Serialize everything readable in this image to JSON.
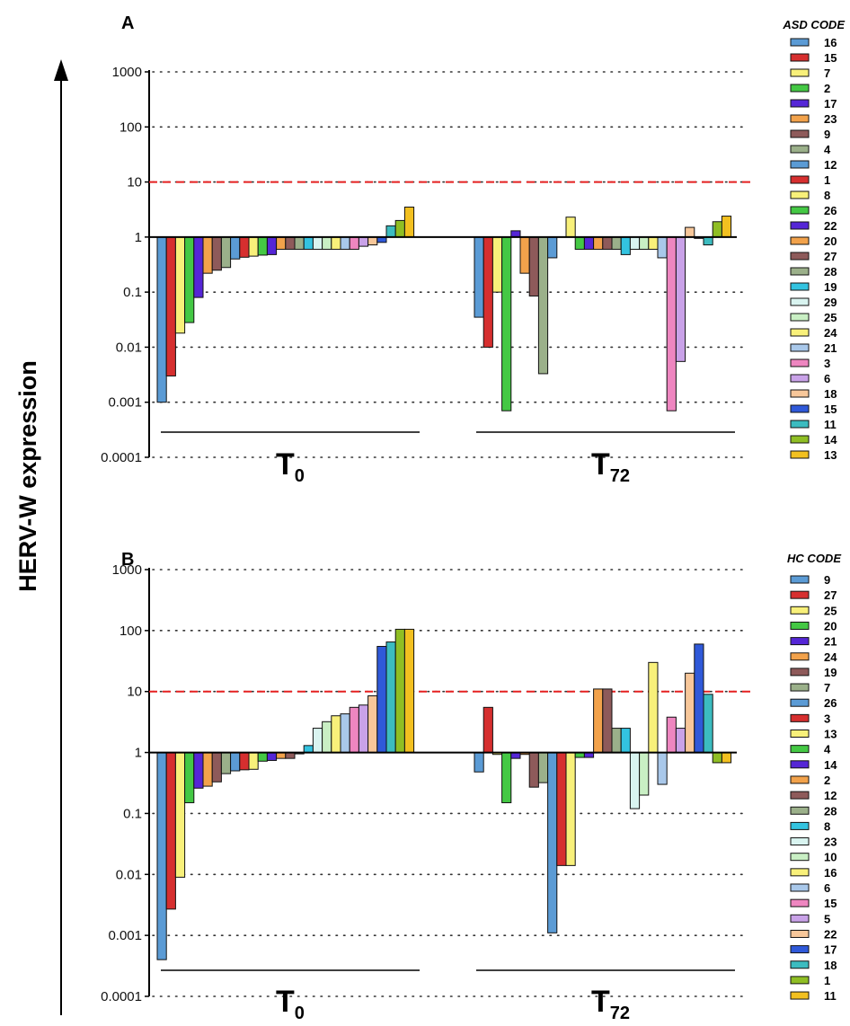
{
  "y_axis_label": "HERV-W expression",
  "tick_labels": [
    "0.0001",
    "0.001",
    "0.01",
    "0.1",
    "1",
    "10",
    "100",
    "1000"
  ],
  "chart_data": [
    {
      "type": "bar",
      "panel": "A",
      "legend_title": "ASD CODE",
      "y_scale": "log",
      "ylim": [
        0.0001,
        1000
      ],
      "reference_line": 10,
      "groups": [
        {
          "label": "T",
          "subscript": "0"
        },
        {
          "label": "T",
          "subscript": "72"
        }
      ],
      "series": [
        {
          "name": "16",
          "color": "#5b9bd5",
          "values": [
            0.001,
            0.035
          ]
        },
        {
          "name": "15",
          "color": "#d62f2f",
          "values": [
            0.003,
            0.01
          ]
        },
        {
          "name": "7",
          "color": "#f8f07a",
          "values": [
            0.018,
            0.1
          ]
        },
        {
          "name": "2",
          "color": "#44c844",
          "values": [
            0.028,
            0.0007
          ]
        },
        {
          "name": "17",
          "color": "#5526d6",
          "values": [
            0.08,
            1.3
          ]
        },
        {
          "name": "23",
          "color": "#f2a24b",
          "values": [
            0.22,
            0.22
          ]
        },
        {
          "name": "9",
          "color": "#8e5a5a",
          "values": [
            0.25,
            0.085
          ]
        },
        {
          "name": "4",
          "color": "#9bb08a",
          "values": [
            0.28,
            0.0033
          ]
        },
        {
          "name": "12",
          "color": "#5b9bd5",
          "values": [
            0.4,
            0.42
          ]
        },
        {
          "name": "1",
          "color": "#d62f2f",
          "values": [
            0.43,
            null
          ]
        },
        {
          "name": "8",
          "color": "#f8f07a",
          "values": [
            0.45,
            2.3
          ]
        },
        {
          "name": "26",
          "color": "#44c844",
          "values": [
            0.47,
            0.6
          ]
        },
        {
          "name": "22",
          "color": "#5526d6",
          "values": [
            0.48,
            0.6
          ]
        },
        {
          "name": "20",
          "color": "#f2a24b",
          "values": [
            0.6,
            0.6
          ]
        },
        {
          "name": "27",
          "color": "#8e5a5a",
          "values": [
            0.6,
            0.6
          ]
        },
        {
          "name": "28",
          "color": "#9bb08a",
          "values": [
            0.6,
            0.6
          ]
        },
        {
          "name": "19",
          "color": "#33c3e0",
          "values": [
            0.6,
            0.48
          ]
        },
        {
          "name": "29",
          "color": "#d9f4f0",
          "values": [
            0.6,
            0.6
          ]
        },
        {
          "name": "25",
          "color": "#c9efc4",
          "values": [
            0.6,
            0.6
          ]
        },
        {
          "name": "24",
          "color": "#f8f07a",
          "values": [
            0.6,
            0.6
          ]
        },
        {
          "name": "21",
          "color": "#a9c8ea",
          "values": [
            0.6,
            0.42
          ]
        },
        {
          "name": "3",
          "color": "#ee86c0",
          "values": [
            0.6,
            0.0007
          ]
        },
        {
          "name": "6",
          "color": "#c9a2e8",
          "values": [
            0.68,
            0.0055
          ]
        },
        {
          "name": "18",
          "color": "#f7c79a",
          "values": [
            0.72,
            1.5
          ]
        },
        {
          "name": "15",
          "color": "#2f59d9",
          "values": [
            0.8,
            0.95
          ]
        },
        {
          "name": "11",
          "color": "#3cbcc0",
          "values": [
            1.6,
            0.72
          ]
        },
        {
          "name": "14",
          "color": "#8fbe24",
          "values": [
            2.0,
            1.9
          ]
        },
        {
          "name": "13",
          "color": "#f2c020",
          "values": [
            3.5,
            2.4
          ]
        }
      ]
    },
    {
      "type": "bar",
      "panel": "B",
      "legend_title": "HC CODE",
      "y_scale": "log",
      "ylim": [
        0.0001,
        1000
      ],
      "reference_line": 10,
      "groups": [
        {
          "label": "T",
          "subscript": "0"
        },
        {
          "label": "T",
          "subscript": "72"
        }
      ],
      "series": [
        {
          "name": "9",
          "color": "#5b9bd5",
          "values": [
            0.0004,
            0.48
          ]
        },
        {
          "name": "27",
          "color": "#d62f2f",
          "values": [
            0.0027,
            5.5
          ]
        },
        {
          "name": "25",
          "color": "#f8f07a",
          "values": [
            0.009,
            0.93
          ]
        },
        {
          "name": "20",
          "color": "#44c844",
          "values": [
            0.15,
            0.15
          ]
        },
        {
          "name": "21",
          "color": "#5526d6",
          "values": [
            0.26,
            0.8
          ]
        },
        {
          "name": "24",
          "color": "#f2a24b",
          "values": [
            0.28,
            0.93
          ]
        },
        {
          "name": "19",
          "color": "#8e5a5a",
          "values": [
            0.33,
            0.27
          ]
        },
        {
          "name": "7",
          "color": "#9bb08a",
          "values": [
            0.45,
            0.32
          ]
        },
        {
          "name": "26",
          "color": "#5b9bd5",
          "values": [
            0.5,
            0.0011
          ]
        },
        {
          "name": "3",
          "color": "#d62f2f",
          "values": [
            0.52,
            0.014
          ]
        },
        {
          "name": "13",
          "color": "#f8f07a",
          "values": [
            0.53,
            0.014
          ]
        },
        {
          "name": "4",
          "color": "#44c844",
          "values": [
            0.72,
            0.83
          ]
        },
        {
          "name": "14",
          "color": "#5526d6",
          "values": [
            0.74,
            0.83
          ]
        },
        {
          "name": "2",
          "color": "#f2a24b",
          "values": [
            0.8,
            11
          ]
        },
        {
          "name": "12",
          "color": "#8e5a5a",
          "values": [
            0.8,
            11
          ]
        },
        {
          "name": "28",
          "color": "#9bb08a",
          "values": [
            0.95,
            2.5
          ]
        },
        {
          "name": "8",
          "color": "#33c3e0",
          "values": [
            1.3,
            2.5
          ]
        },
        {
          "name": "23",
          "color": "#d9f4f0",
          "values": [
            2.5,
            0.12
          ]
        },
        {
          "name": "10",
          "color": "#c9efc4",
          "values": [
            3.2,
            0.2
          ]
        },
        {
          "name": "16",
          "color": "#f8f07a",
          "values": [
            4.0,
            30
          ]
        },
        {
          "name": "6",
          "color": "#a9c8ea",
          "values": [
            4.3,
            0.3
          ]
        },
        {
          "name": "15",
          "color": "#ee86c0",
          "values": [
            5.5,
            3.8
          ]
        },
        {
          "name": "5",
          "color": "#c9a2e8",
          "values": [
            6.0,
            2.5
          ]
        },
        {
          "name": "22",
          "color": "#f7c79a",
          "values": [
            8.5,
            20
          ]
        },
        {
          "name": "17",
          "color": "#2f59d9",
          "values": [
            55,
            60
          ]
        },
        {
          "name": "18",
          "color": "#3cbcc0",
          "values": [
            65,
            9
          ]
        },
        {
          "name": "1",
          "color": "#8fbe24",
          "values": [
            105,
            0.68
          ]
        },
        {
          "name": "11",
          "color": "#f2c020",
          "values": [
            105,
            0.68
          ]
        }
      ]
    }
  ]
}
